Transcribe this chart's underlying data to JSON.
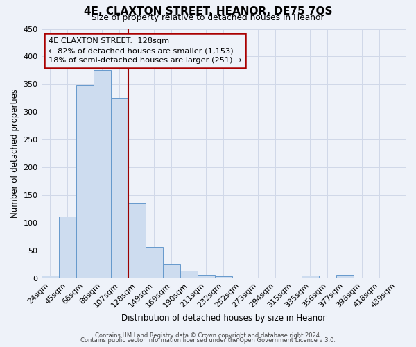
{
  "title": "4E, CLAXTON STREET, HEANOR, DE75 7QS",
  "subtitle": "Size of property relative to detached houses in Heanor",
  "xlabel": "Distribution of detached houses by size in Heanor",
  "ylabel": "Number of detached properties",
  "bin_labels": [
    "24sqm",
    "45sqm",
    "66sqm",
    "86sqm",
    "107sqm",
    "128sqm",
    "149sqm",
    "169sqm",
    "190sqm",
    "211sqm",
    "232sqm",
    "252sqm",
    "273sqm",
    "294sqm",
    "315sqm",
    "335sqm",
    "356sqm",
    "377sqm",
    "398sqm",
    "418sqm",
    "439sqm"
  ],
  "bin_values": [
    5,
    112,
    348,
    375,
    325,
    135,
    57,
    25,
    14,
    7,
    4,
    2,
    2,
    1,
    1,
    5,
    1,
    6,
    1,
    1,
    2
  ],
  "bar_color": "#cddcef",
  "bar_edge_color": "#6699cc",
  "vline_x": 5,
  "vline_color": "#9b0000",
  "annotation_title": "4E CLAXTON STREET:  128sqm",
  "annotation_line1": "← 82% of detached houses are smaller (1,153)",
  "annotation_line2": "18% of semi-detached houses are larger (251) →",
  "annotation_box_edge": "#aa0000",
  "ylim": [
    0,
    450
  ],
  "yticks": [
    0,
    50,
    100,
    150,
    200,
    250,
    300,
    350,
    400,
    450
  ],
  "footer1": "Contains HM Land Registry data © Crown copyright and database right 2024.",
  "footer2": "Contains public sector information licensed under the Open Government Licence v 3.0.",
  "bg_color": "#eef2f9",
  "grid_color": "#d0d8e8"
}
